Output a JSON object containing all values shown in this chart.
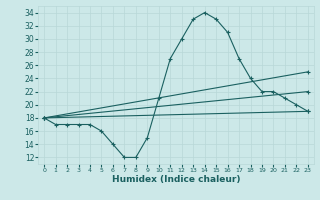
{
  "xlabel": "Humidex (Indice chaleur)",
  "ylabel": "",
  "xlim": [
    -0.5,
    23.5
  ],
  "ylim": [
    11,
    35
  ],
  "yticks": [
    12,
    14,
    16,
    18,
    20,
    22,
    24,
    26,
    28,
    30,
    32,
    34
  ],
  "xticks": [
    0,
    1,
    2,
    3,
    4,
    5,
    6,
    7,
    8,
    9,
    10,
    11,
    12,
    13,
    14,
    15,
    16,
    17,
    18,
    19,
    20,
    21,
    22,
    23
  ],
  "bg_color": "#cce8e8",
  "line_color": "#1a6060",
  "grid_color": "#b8d8d8",
  "series": [
    {
      "x": [
        0,
        1,
        2,
        3,
        4,
        5,
        6,
        7,
        8,
        9,
        10,
        11,
        12,
        13,
        14,
        15,
        16,
        17,
        18,
        19,
        20,
        21,
        22,
        23
      ],
      "y": [
        18,
        17,
        17,
        17,
        17,
        16,
        14,
        12,
        12,
        15,
        21,
        27,
        30,
        33,
        34,
        33,
        31,
        27,
        24,
        22,
        22,
        21,
        20,
        19
      ],
      "marker": true
    },
    {
      "x": [
        0,
        23
      ],
      "y": [
        18,
        25
      ],
      "marker": true
    },
    {
      "x": [
        0,
        23
      ],
      "y": [
        18,
        22
      ],
      "marker": true
    },
    {
      "x": [
        0,
        23
      ],
      "y": [
        18,
        19
      ],
      "marker": true
    }
  ]
}
